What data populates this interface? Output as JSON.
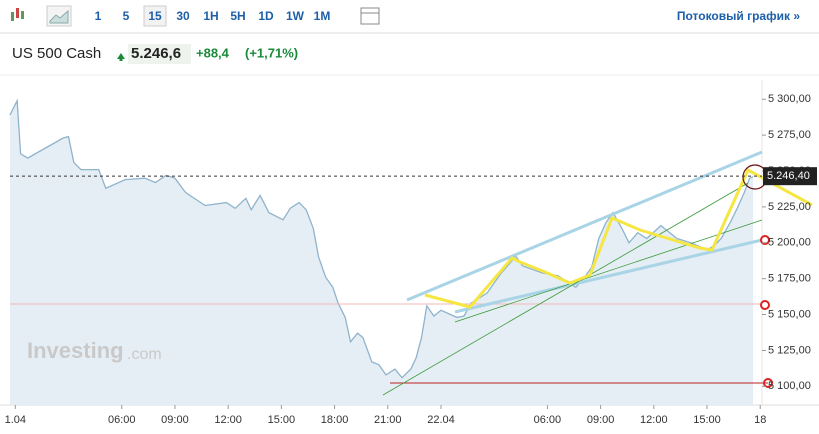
{
  "toolbar": {
    "intervals": [
      "1",
      "5",
      "15",
      "30",
      "1H",
      "5H",
      "1D",
      "1W",
      "1M"
    ],
    "selected": 2,
    "stream_link": "Потоковый график »"
  },
  "header": {
    "name": "US 500 Cash",
    "price": "5.246,6",
    "change": "+88,4",
    "change_pct": "(+1,71%)"
  },
  "watermark": {
    "brand": "Investing",
    "suffix": ".com"
  },
  "chart_data": {
    "type": "area",
    "color": "#8fb3cc",
    "fill": "#e6eef5",
    "x": [
      -0.3,
      0.1,
      0.3,
      0.7,
      1.7,
      2.7,
      3.0,
      3.3,
      3.7,
      4.7,
      5.1,
      6.2,
      7.3,
      7.9,
      8.5,
      9.0,
      9.6,
      10.7,
      11.9,
      12.4,
      13.0,
      13.3,
      13.8,
      14.3,
      15.1,
      15.5,
      16.0,
      16.4,
      16.8,
      17.1,
      17.5,
      17.9,
      18.2,
      18.6,
      18.9,
      19.3,
      19.6,
      20.1,
      20.5,
      20.9,
      21.4,
      21.8,
      22.3,
      22.6,
      22.9,
      23.2,
      23.6,
      24.0,
      24.9,
      25.3,
      25.7,
      26.6,
      27.4,
      27.9,
      28.2,
      28.6,
      29.7,
      30.6,
      31.6,
      32.1,
      32.5,
      32.9,
      33.3,
      33.7,
      34.2,
      34.6,
      35.1,
      35.6,
      36.4,
      37.3,
      38.1,
      39.0,
      39.4,
      39.8,
      40.3,
      40.7,
      41.1,
      41.4,
      41.6
    ],
    "values": [
      5289,
      5299,
      5262,
      5259,
      5266,
      5273,
      5274,
      5256,
      5251,
      5251,
      5238,
      5244,
      5245,
      5242,
      5247,
      5245,
      5235,
      5226,
      5228,
      5224,
      5231,
      5223,
      5233,
      5221,
      5216,
      5224,
      5228,
      5223,
      5210,
      5190,
      5176,
      5169,
      5158,
      5148,
      5131,
      5137,
      5134,
      5117,
      5115,
      5108,
      5112,
      5106,
      5112,
      5120,
      5134,
      5156,
      5149,
      5153,
      5148,
      5149,
      5158,
      5165,
      5179,
      5186,
      5191,
      5184,
      5179,
      5177,
      5169,
      5176,
      5183,
      5203,
      5214,
      5221,
      5210,
      5200,
      5207,
      5203,
      5212,
      5203,
      5200,
      5195,
      5198,
      5203,
      5214,
      5224,
      5235,
      5245,
      5246
    ],
    "xlim": [
      -0.3,
      42.1
    ],
    "xticks": [
      {
        "value": 0,
        "label": "1.04"
      },
      {
        "value": 6,
        "label": "06:00"
      },
      {
        "value": 9,
        "label": "09:00"
      },
      {
        "value": 12,
        "label": "12:00"
      },
      {
        "value": 15,
        "label": "15:00"
      },
      {
        "value": 18,
        "label": "18:00"
      },
      {
        "value": 21,
        "label": "21:00"
      },
      {
        "value": 24,
        "label": "22.04"
      },
      {
        "value": 30,
        "label": "06:00"
      },
      {
        "value": 33,
        "label": "09:00"
      },
      {
        "value": 36,
        "label": "12:00"
      },
      {
        "value": 39,
        "label": "15:00"
      },
      {
        "value": 42,
        "label": "18"
      }
    ],
    "ylim": [
      5087,
      5312
    ],
    "yticks": [
      {
        "value": 5100,
        "label": "5 100,00"
      },
      {
        "value": 5125,
        "label": "5 125,00"
      },
      {
        "value": 5150,
        "label": "5 150,00"
      },
      {
        "value": 5175,
        "label": "5 175,00"
      },
      {
        "value": 5200,
        "label": "5 200,00"
      },
      {
        "value": 5225,
        "label": "5 225,00"
      },
      {
        "value": 5250,
        "label": "5 250,00"
      },
      {
        "value": 5275,
        "label": "5 275,00"
      },
      {
        "value": 5300,
        "label": "5 300,00"
      }
    ],
    "last_price": {
      "value": 5246.4,
      "label": "5.246,40"
    }
  }
}
